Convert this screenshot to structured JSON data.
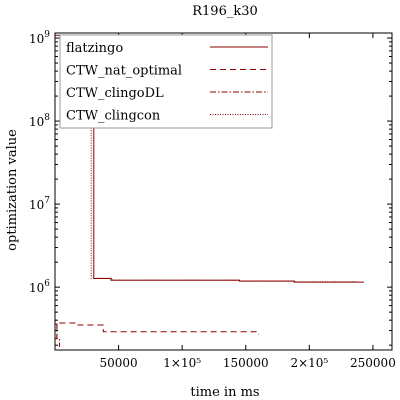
{
  "chart_data": {
    "type": "line",
    "title": "R196_k30",
    "xlabel": "time in ms",
    "ylabel": "optimization value",
    "x_scale": "linear",
    "y_scale": "log",
    "xlim": [
      0,
      265000
    ],
    "ylim": [
      175000,
      1150000000
    ],
    "x_ticks": [
      {
        "value": 50000,
        "label": "50000"
      },
      {
        "value": 100000,
        "label": "1×10⁵"
      },
      {
        "value": 150000,
        "label": "150000"
      },
      {
        "value": 200000,
        "label": "2×10⁵"
      },
      {
        "value": 250000,
        "label": "250000"
      }
    ],
    "y_ticks": [
      {
        "value": 1000000,
        "base": "10",
        "exp": "6"
      },
      {
        "value": 10000000,
        "base": "10",
        "exp": "7"
      },
      {
        "value": 100000000,
        "base": "10",
        "exp": "8"
      },
      {
        "value": 1000000000,
        "base": "10",
        "exp": "9"
      }
    ],
    "legend_position": "top-left",
    "grid": false,
    "line_color": "#8b0000",
    "series": [
      {
        "name": "flatzingo",
        "style": "solid",
        "points": [
          [
            0,
            1080000000
          ],
          [
            30500,
            1080000000
          ],
          [
            30500,
            1270000
          ],
          [
            44000,
            1270000
          ],
          [
            44000,
            1210000
          ],
          [
            145000,
            1210000
          ],
          [
            145000,
            1180000
          ],
          [
            188000,
            1180000
          ],
          [
            188000,
            1150000
          ],
          [
            243000,
            1150000
          ]
        ]
      },
      {
        "name": "CTW_nat_optimal",
        "style": "dashed",
        "points": [
          [
            0,
            240000
          ],
          [
            1500,
            240000
          ],
          [
            1500,
            370000
          ],
          [
            18000,
            370000
          ],
          [
            18000,
            350000
          ],
          [
            38000,
            350000
          ],
          [
            38000,
            290000
          ],
          [
            160000,
            290000
          ],
          [
            160000,
            270000
          ]
        ]
      },
      {
        "name": "CTW_clingoDL",
        "style": "dashdot",
        "points": [
          [
            0,
            360000
          ],
          [
            1500,
            360000
          ],
          [
            1500,
            240000
          ],
          [
            3500,
            240000
          ],
          [
            3500,
            190000
          ]
        ]
      },
      {
        "name": "CTW_clingcon",
        "style": "dotted",
        "points": [
          [
            28500,
            1080000000
          ],
          [
            28500,
            1280000
          ],
          [
            45000,
            1280000
          ],
          [
            45000,
            1220000
          ],
          [
            145000,
            1220000
          ],
          [
            145000,
            1190000
          ],
          [
            188000,
            1190000
          ],
          [
            188000,
            1160000
          ],
          [
            238000,
            1160000
          ]
        ]
      }
    ]
  }
}
